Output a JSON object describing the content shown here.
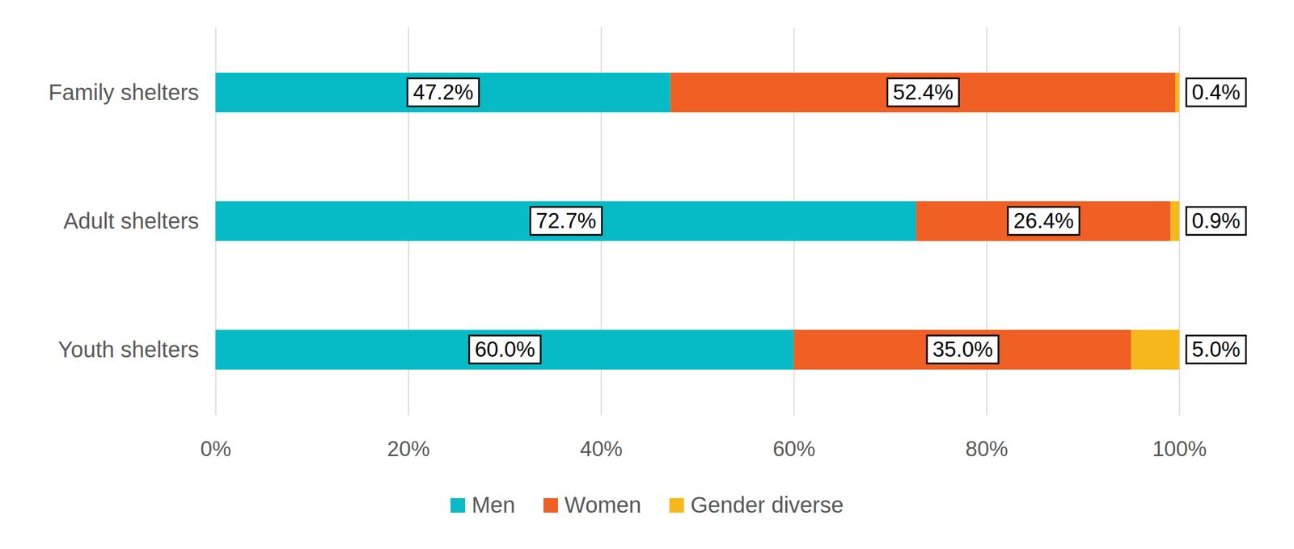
{
  "chart_data": {
    "type": "bar",
    "orientation": "horizontal",
    "stacked": true,
    "data_labels": true,
    "grid": true,
    "legend": "bottom",
    "categories": [
      "Family shelters",
      "Adult shelters",
      "Youth shelters"
    ],
    "series": [
      {
        "name": "Men",
        "color": "#06BBC6",
        "values": [
          47.2,
          72.7,
          60.0
        ],
        "value_labels": [
          "47.2%",
          "72.7%",
          "60.0%"
        ]
      },
      {
        "name": "Women",
        "color": "#F05F23",
        "values": [
          52.4,
          26.4,
          35.0
        ],
        "value_labels": [
          "52.4%",
          "26.4%",
          "35.0%"
        ]
      },
      {
        "name": "Gender diverse",
        "color": "#F6B81B",
        "values": [
          0.4,
          0.9,
          5.0
        ],
        "value_labels": [
          "0.4%",
          "0.9%",
          "5.0%"
        ]
      }
    ],
    "xlim": [
      0,
      100
    ],
    "xticks": [
      {
        "value": 0,
        "label": "0%"
      },
      {
        "value": 20,
        "label": "20%"
      },
      {
        "value": 40,
        "label": "40%"
      },
      {
        "value": 60,
        "label": "60%"
      },
      {
        "value": 80,
        "label": "80%"
      },
      {
        "value": 100,
        "label": "100%"
      }
    ]
  }
}
